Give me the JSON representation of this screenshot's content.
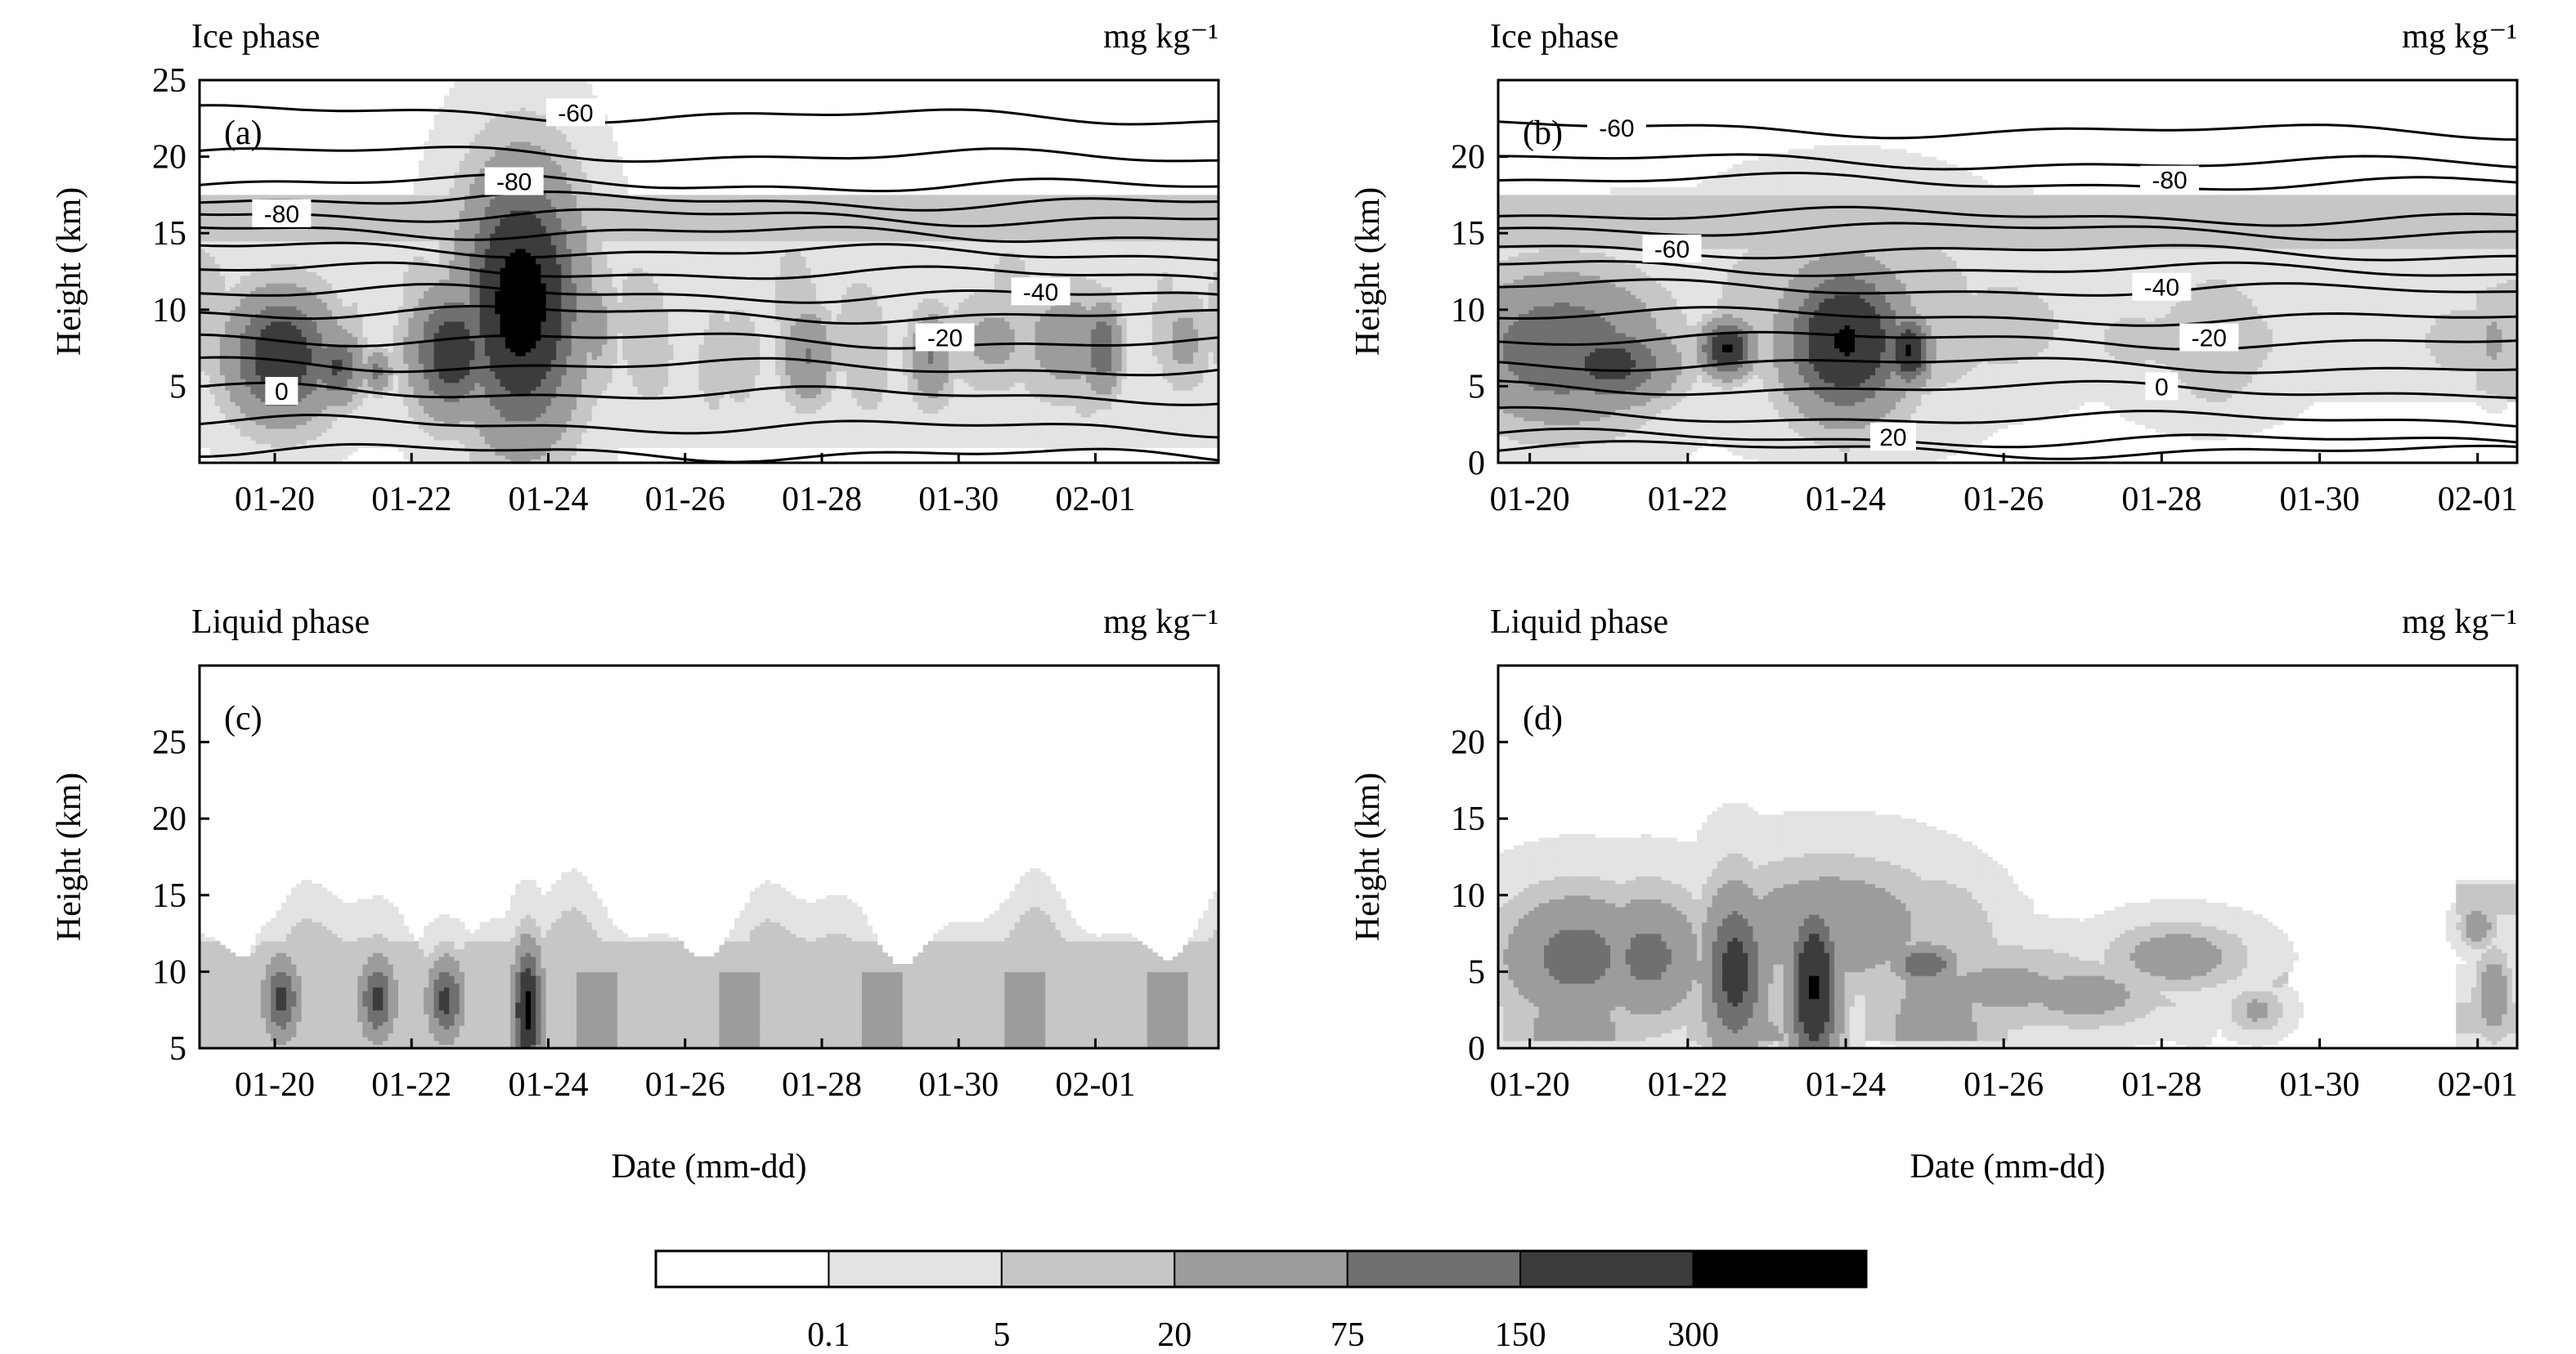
{
  "colorbar": {
    "ticks": [
      "0.1",
      "5",
      "20",
      "75",
      "150",
      "300"
    ],
    "colors": [
      "#ffffff",
      "#e3e3e3",
      "#c6c6c6",
      "#9c9c9c",
      "#707070",
      "#3c3c3c",
      "#000000"
    ]
  },
  "chart_data": [
    {
      "id": "a",
      "type": "heatmap",
      "panel_label": "(a)",
      "title": "Ice phase",
      "unit": "mg kg⁻¹",
      "ylabel": "Height (km)",
      "xlabel": "",
      "xticks": [
        "01-20",
        "01-22",
        "01-24",
        "01-26",
        "01-28",
        "01-30",
        "02-01"
      ],
      "yticks": [
        5,
        10,
        15,
        20,
        25
      ],
      "ylim": [
        0,
        25
      ],
      "xlim": [
        -0.55,
        6.9
      ],
      "temperature_contours": [
        {
          "label": "-80",
          "height_km": 16.3
        },
        {
          "label": "-80",
          "height_km": 18.4
        },
        {
          "label": "-60",
          "height_km": 22.9
        },
        {
          "label": "-40",
          "height_km": 11.2
        },
        {
          "label": "-20",
          "height_km": 8.2
        },
        {
          "label": "0",
          "height_km": 4.7
        }
      ],
      "features": [
        {
          "x": 0.05,
          "h": 7.0,
          "xw": 0.28,
          "hw": 3.0,
          "v": 260
        },
        {
          "x": 0.45,
          "h": 6.3,
          "xw": 0.14,
          "hw": 1.8,
          "v": 160
        },
        {
          "x": 0.75,
          "h": 6.0,
          "xw": 0.08,
          "hw": 1.0,
          "v": 90
        },
        {
          "x": 1.3,
          "h": 7.3,
          "xw": 0.22,
          "hw": 3.0,
          "v": 240
        },
        {
          "x": 1.9,
          "h": 9.0,
          "xw": 0.2,
          "hw": 5.5,
          "v": 80
        },
        {
          "x": 1.9,
          "h": 6.0,
          "xw": 0.07,
          "hw": 1.0,
          "v": 240
        },
        {
          "x": 1.8,
          "h": 10.5,
          "xw": 0.3,
          "hw": 6.0,
          "v": 420
        },
        {
          "x": 2.35,
          "h": 9.0,
          "xw": 0.12,
          "hw": 3.5,
          "v": 30
        },
        {
          "x": 3.4,
          "h": 7.0,
          "xw": 0.12,
          "hw": 2.5,
          "v": 20
        },
        {
          "x": 3.9,
          "h": 7.0,
          "xw": 0.14,
          "hw": 2.3,
          "v": 80
        },
        {
          "x": 4.8,
          "h": 7.0,
          "xw": 0.12,
          "hw": 2.3,
          "v": 80
        },
        {
          "x": 5.25,
          "h": 8.0,
          "xw": 0.25,
          "hw": 2.5,
          "v": 30
        },
        {
          "x": 5.8,
          "h": 8.0,
          "xw": 0.3,
          "hw": 3.0,
          "v": 40
        },
        {
          "x": 6.05,
          "h": 7.5,
          "xw": 0.1,
          "hw": 2.2,
          "v": 150
        },
        {
          "x": 6.65,
          "h": 8.0,
          "xw": 0.15,
          "hw": 2.5,
          "v": 30
        }
      ]
    },
    {
      "id": "b",
      "type": "heatmap",
      "panel_label": "(b)",
      "title": "Ice phase",
      "unit": "mg kg⁻¹",
      "ylabel": "Height (km)",
      "xlabel": "",
      "xticks": [
        "01-20",
        "01-22",
        "01-24",
        "01-26",
        "01-28",
        "01-30",
        "02-01"
      ],
      "yticks": [
        0,
        5,
        10,
        15,
        20
      ],
      "ylim": [
        0,
        25
      ],
      "xlim": [
        -0.2,
        6.25
      ],
      "temperature_contours": [
        {
          "label": "-60",
          "height_km": 21.9
        },
        {
          "label": "-80",
          "height_km": 18.5
        },
        {
          "label": "-60",
          "height_km": 14.0
        },
        {
          "label": "-40",
          "height_km": 11.5
        },
        {
          "label": "-20",
          "height_km": 8.2
        },
        {
          "label": "0",
          "height_km": 5.0
        },
        {
          "label": "20",
          "height_km": 1.7
        }
      ],
      "features": [
        {
          "x": 0.2,
          "h": 7.5,
          "xw": 0.45,
          "hw": 3.5,
          "v": 150
        },
        {
          "x": 0.5,
          "h": 6.5,
          "xw": 0.3,
          "hw": 2.0,
          "v": 200
        },
        {
          "x": 1.25,
          "h": 7.5,
          "xw": 0.12,
          "hw": 1.3,
          "v": 320
        },
        {
          "x": 2.0,
          "h": 8.0,
          "xw": 0.28,
          "hw": 3.5,
          "v": 320
        },
        {
          "x": 2.4,
          "h": 7.3,
          "xw": 0.1,
          "hw": 1.6,
          "v": 320
        },
        {
          "x": 2.0,
          "h": 10.0,
          "xw": 0.6,
          "hw": 4.5,
          "v": 30
        },
        {
          "x": 3.0,
          "h": 9.0,
          "xw": 0.4,
          "hw": 3.0,
          "v": 10
        },
        {
          "x": 4.3,
          "h": 8.0,
          "xw": 0.4,
          "hw": 3.0,
          "v": 10
        },
        {
          "x": 6.1,
          "h": 8.0,
          "xw": 0.08,
          "hw": 2.0,
          "v": 30
        }
      ]
    },
    {
      "id": "c",
      "type": "heatmap",
      "panel_label": "(c)",
      "title": "Liquid phase",
      "unit": "mg kg⁻¹",
      "ylabel": "Height (km)",
      "xlabel": "Date (mm-dd)",
      "xticks": [
        "01-20",
        "01-22",
        "01-24",
        "01-26",
        "01-28",
        "01-30",
        "02-01"
      ],
      "yticks": [
        5,
        10,
        15,
        20,
        25
      ],
      "ylim": [
        5,
        30
      ],
      "xlim": [
        -0.55,
        6.9
      ],
      "features": [
        {
          "x": 0.05,
          "h": 8.2,
          "xw": 0.1,
          "hw": 2.0,
          "v": 180
        },
        {
          "x": 0.75,
          "h": 8.2,
          "xw": 0.1,
          "hw": 2.0,
          "v": 180
        },
        {
          "x": 1.25,
          "h": 8.2,
          "xw": 0.1,
          "hw": 2.0,
          "v": 180
        },
        {
          "x": 1.85,
          "h": 7.5,
          "xw": 0.08,
          "hw": 3.0,
          "v": 350
        }
      ]
    },
    {
      "id": "d",
      "type": "heatmap",
      "panel_label": "(d)",
      "title": "Liquid phase",
      "unit": "mg kg⁻¹",
      "ylabel": "Height (km)",
      "xlabel": "Date (mm-dd)",
      "xticks": [
        "01-20",
        "01-22",
        "01-24",
        "01-26",
        "01-28",
        "01-30",
        "02-01"
      ],
      "yticks": [
        0,
        5,
        10,
        15,
        20
      ],
      "ylim": [
        0,
        25
      ],
      "xlim": [
        -0.2,
        6.25
      ],
      "features": [
        {
          "x": 0.3,
          "h": 6.0,
          "xw": 0.35,
          "hw": 3.0,
          "v": 110
        },
        {
          "x": 0.75,
          "h": 6.0,
          "xw": 0.25,
          "hw": 3.0,
          "v": 100
        },
        {
          "x": 1.3,
          "h": 5.0,
          "xw": 0.15,
          "hw": 4.0,
          "v": 200
        },
        {
          "x": 1.8,
          "h": 4.0,
          "xw": 0.12,
          "hw": 4.0,
          "v": 320
        },
        {
          "x": 1.9,
          "h": 8.0,
          "xw": 0.5,
          "hw": 3.0,
          "v": 60
        },
        {
          "x": 2.5,
          "h": 5.5,
          "xw": 0.15,
          "hw": 1.0,
          "v": 150
        },
        {
          "x": 3.0,
          "h": 4.0,
          "xw": 0.5,
          "hw": 2.0,
          "v": 30
        },
        {
          "x": 3.5,
          "h": 3.5,
          "xw": 0.35,
          "hw": 1.5,
          "v": 40
        },
        {
          "x": 4.1,
          "h": 6.0,
          "xw": 0.3,
          "hw": 1.5,
          "v": 50
        },
        {
          "x": 4.6,
          "h": 2.5,
          "xw": 0.12,
          "hw": 1.0,
          "v": 30
        },
        {
          "x": 6.0,
          "h": 8.0,
          "xw": 0.08,
          "hw": 1.0,
          "v": 50
        },
        {
          "x": 6.1,
          "h": 3.5,
          "xw": 0.08,
          "hw": 2.0,
          "v": 60
        }
      ]
    }
  ]
}
